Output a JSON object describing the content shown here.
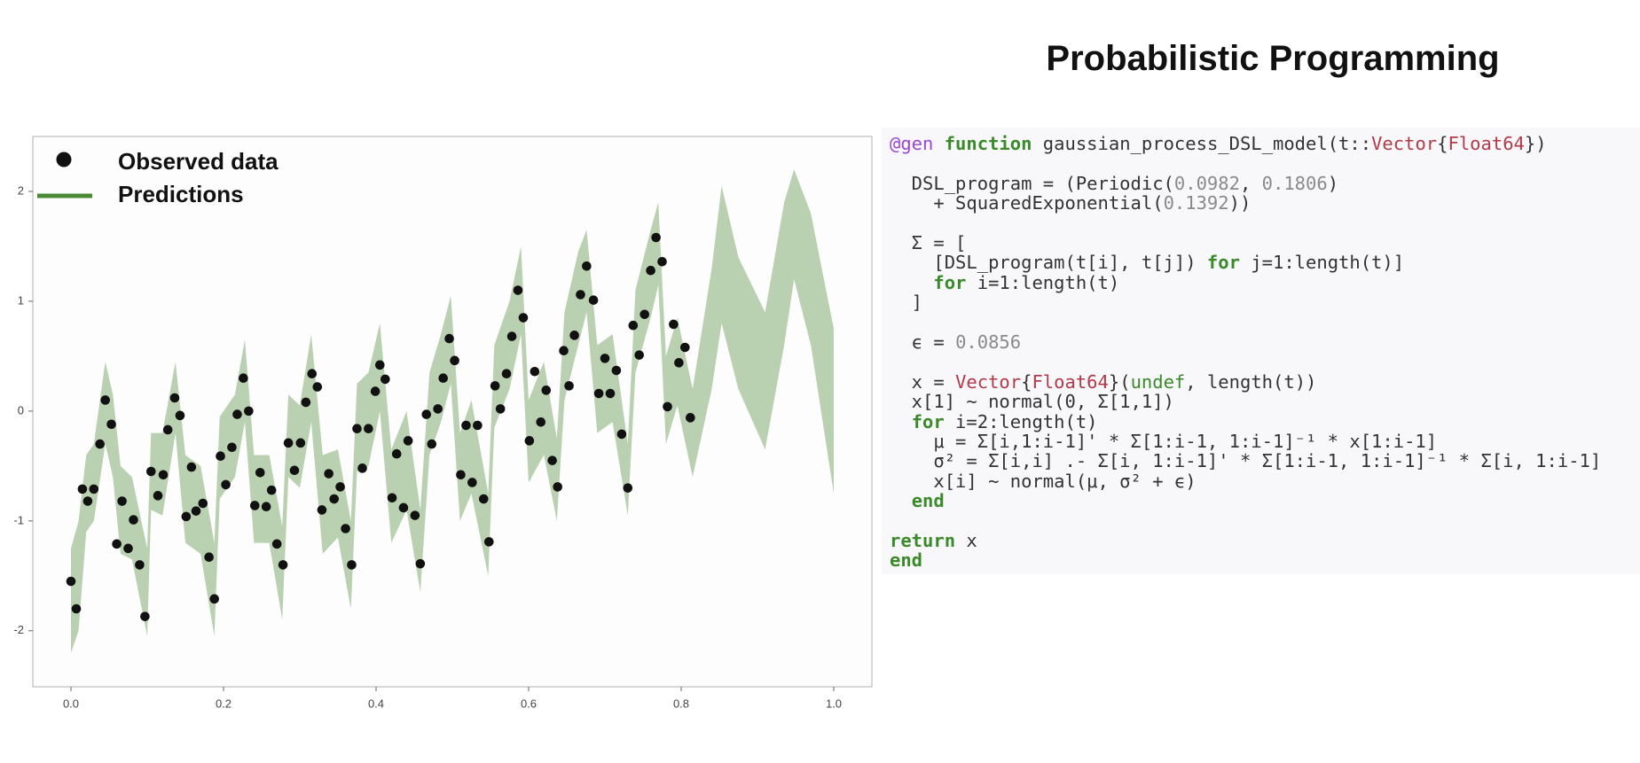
{
  "title": "Probabilistic Programming",
  "chart_data": {
    "type": "scatter",
    "xlim": [
      -0.05,
      1.05
    ],
    "ylim": [
      -2.51,
      2.5
    ],
    "xticks": [
      {
        "value": 0,
        "label": "0.0"
      },
      0.2,
      0.4,
      0.6,
      0.8,
      {
        "value": 1,
        "label": "1.0"
      }
    ],
    "yticks": [
      -2,
      -1,
      0,
      1,
      2
    ],
    "legend": "upper left",
    "series": [
      {
        "name": "Observed data",
        "type": "scatter",
        "color": "#111111",
        "x": [
          0.0,
          0.007,
          0.015,
          0.022,
          0.03,
          0.038,
          0.045,
          0.053,
          0.06,
          0.067,
          0.075,
          0.082,
          0.09,
          0.097,
          0.105,
          0.114,
          0.121,
          0.127,
          0.136,
          0.143,
          0.151,
          0.158,
          0.164,
          0.173,
          0.181,
          0.188,
          0.196,
          0.203,
          0.211,
          0.218,
          0.226,
          0.233,
          0.241,
          0.248,
          0.256,
          0.263,
          0.27,
          0.278,
          0.285,
          0.293,
          0.301,
          0.308,
          0.316,
          0.323,
          0.329,
          0.338,
          0.345,
          0.353,
          0.36,
          0.368,
          0.375,
          0.382,
          0.39,
          0.399,
          0.405,
          0.412,
          0.421,
          0.427,
          0.436,
          0.442,
          0.451,
          0.458,
          0.466,
          0.473,
          0.481,
          0.488,
          0.496,
          0.503,
          0.511,
          0.518,
          0.526,
          0.533,
          0.541,
          0.548,
          0.556,
          0.563,
          0.571,
          0.578,
          0.586,
          0.593,
          0.601,
          0.608,
          0.616,
          0.623,
          0.631,
          0.638,
          0.646,
          0.653,
          0.66,
          0.668,
          0.676,
          0.685,
          0.692,
          0.7,
          0.707,
          0.715,
          0.722,
          0.73,
          0.737,
          0.745,
          0.752,
          0.76,
          0.767,
          0.775,
          0.782,
          0.79,
          0.797,
          0.805,
          0.812
        ],
        "values": [
          -1.55,
          -1.8,
          -0.71,
          -0.82,
          -0.71,
          -0.3,
          0.1,
          -0.12,
          -1.21,
          -0.82,
          -1.25,
          -0.99,
          -1.4,
          -1.87,
          -0.55,
          -0.77,
          -0.58,
          -0.17,
          0.12,
          -0.04,
          -0.96,
          -0.51,
          -0.91,
          -0.84,
          -1.33,
          -1.71,
          -0.41,
          -0.67,
          -0.33,
          -0.03,
          0.3,
          0.0,
          -0.86,
          -0.56,
          -0.87,
          -0.72,
          -1.21,
          -1.4,
          -0.29,
          -0.54,
          -0.29,
          0.08,
          0.34,
          0.22,
          -0.9,
          -0.57,
          -0.8,
          -0.69,
          -1.07,
          -1.4,
          -0.16,
          -0.52,
          -0.16,
          0.18,
          0.42,
          0.29,
          -0.79,
          -0.39,
          -0.88,
          -0.27,
          -0.95,
          -1.39,
          -0.03,
          -0.3,
          0.02,
          0.3,
          0.66,
          0.46,
          -0.58,
          -0.13,
          -0.65,
          -0.13,
          -0.8,
          -1.19,
          0.23,
          0.02,
          0.34,
          0.68,
          1.1,
          0.85,
          -0.27,
          0.36,
          -0.1,
          0.19,
          -0.45,
          -0.69,
          0.55,
          0.23,
          0.69,
          1.06,
          1.32,
          1.01,
          0.16,
          0.48,
          0.16,
          0.37,
          -0.21,
          -0.7,
          0.78,
          0.51,
          0.88,
          1.28,
          1.58,
          1.36,
          0.04,
          0.79,
          0.44,
          0.58,
          -0.06
        ]
      },
      {
        "name": "Predictions",
        "type": "band",
        "color": "#4a8a34",
        "x": [
          0.0,
          0.01,
          0.02,
          0.03,
          0.045,
          0.055,
          0.065,
          0.08,
          0.1,
          0.105,
          0.12,
          0.137,
          0.15,
          0.17,
          0.188,
          0.195,
          0.215,
          0.228,
          0.24,
          0.26,
          0.277,
          0.285,
          0.3,
          0.315,
          0.33,
          0.35,
          0.367,
          0.375,
          0.39,
          0.405,
          0.42,
          0.44,
          0.458,
          0.47,
          0.485,
          0.498,
          0.51,
          0.525,
          0.547,
          0.555,
          0.575,
          0.59,
          0.6,
          0.62,
          0.637,
          0.647,
          0.665,
          0.676,
          0.69,
          0.71,
          0.73,
          0.74,
          0.76,
          0.77,
          0.78,
          0.795,
          0.815,
          0.84,
          0.853,
          0.875,
          0.91,
          0.935,
          0.948,
          0.97,
          1.0
        ],
        "lower": [
          -2.2,
          -2.0,
          -1.1,
          -1.0,
          -0.3,
          -0.6,
          -1.3,
          -1.35,
          -2.05,
          -0.9,
          -0.95,
          -0.2,
          -1.2,
          -1.3,
          -2.05,
          -0.8,
          -0.6,
          -0.1,
          -1.2,
          -1.2,
          -1.9,
          -0.6,
          -0.7,
          -0.1,
          -1.3,
          -1.15,
          -1.8,
          -0.55,
          -0.5,
          0.0,
          -1.2,
          -0.9,
          -1.65,
          -0.4,
          -0.1,
          0.25,
          -1.0,
          -0.75,
          -1.5,
          -0.15,
          0.2,
          0.7,
          -0.65,
          -0.4,
          -1.0,
          0.1,
          0.6,
          0.9,
          -0.2,
          -0.1,
          -0.95,
          0.35,
          0.85,
          1.15,
          -0.3,
          0.05,
          -0.6,
          0.2,
          0.8,
          0.2,
          -0.35,
          0.6,
          1.2,
          0.6,
          -0.75
        ],
        "upper": [
          -1.25,
          -1.0,
          -0.4,
          -0.3,
          0.45,
          0.15,
          -0.5,
          -0.6,
          -1.25,
          -0.2,
          -0.2,
          0.45,
          -0.4,
          -0.5,
          -1.2,
          -0.05,
          0.15,
          0.65,
          -0.4,
          -0.4,
          -1.05,
          0.15,
          0.05,
          0.7,
          -0.4,
          -0.35,
          -1.0,
          0.25,
          0.35,
          0.8,
          -0.35,
          0.0,
          -0.9,
          0.35,
          0.7,
          1.05,
          -0.2,
          0.1,
          -0.75,
          0.6,
          1.0,
          1.5,
          0.1,
          0.45,
          -0.25,
          0.9,
          1.45,
          1.65,
          0.6,
          0.7,
          -0.3,
          1.1,
          1.65,
          1.9,
          0.5,
          0.85,
          0.2,
          1.3,
          2.05,
          1.4,
          0.9,
          1.9,
          2.2,
          1.8,
          0.75
        ]
      }
    ]
  },
  "code": {
    "blocks": [
      [
        [
          {
            "text": "@gen",
            "color": "#9b45d8"
          },
          {
            "text": " "
          },
          {
            "text": "function",
            "color": "#3a8a2a",
            "bold": true
          },
          {
            "text": " gaussian_process_DSL_model(t::"
          },
          {
            "text": "Vector",
            "color": "#b23a48"
          },
          {
            "text": "{"
          },
          {
            "text": "Float64",
            "color": "#b23a48"
          },
          {
            "text": "})"
          }
        ]
      ],
      [
        [
          {
            "text": "  DSL_program = (Periodic("
          },
          {
            "text": "0.0982",
            "color": "#8a8a8a"
          },
          {
            "text": ", "
          },
          {
            "text": "0.1806",
            "color": "#8a8a8a"
          },
          {
            "text": ")"
          }
        ],
        [
          {
            "text": "    + SquaredExponential("
          },
          {
            "text": "0.1392",
            "color": "#8a8a8a"
          },
          {
            "text": "))"
          }
        ]
      ],
      [
        [
          {
            "text": "  Σ = ["
          }
        ],
        [
          {
            "text": "    [DSL_program(t[i], t[j]) "
          },
          {
            "text": "for",
            "color": "#3a8a2a",
            "bold": true
          },
          {
            "text": " j=1:length(t)]"
          }
        ],
        [
          {
            "text": "    "
          },
          {
            "text": "for",
            "color": "#3a8a2a",
            "bold": true
          },
          {
            "text": " i=1:length(t)"
          }
        ],
        [
          {
            "text": "  ]"
          }
        ]
      ],
      [
        [
          {
            "text": "  ϵ = "
          },
          {
            "text": "0.0856",
            "color": "#8a8a8a"
          }
        ]
      ],
      [
        [
          {
            "text": "  x = "
          },
          {
            "text": "Vector",
            "color": "#b23a48"
          },
          {
            "text": "{"
          },
          {
            "text": "Float64",
            "color": "#b23a48"
          },
          {
            "text": "}("
          },
          {
            "text": "undef",
            "color": "#3a8a2a"
          },
          {
            "text": ", length(t))"
          }
        ],
        [
          {
            "text": "  x[1] ~ normal(0, Σ[1,1])"
          }
        ],
        [
          {
            "text": "  "
          },
          {
            "text": "for",
            "color": "#3a8a2a",
            "bold": true
          },
          {
            "text": " i=2:length(t)"
          }
        ],
        [
          {
            "text": "    μ = Σ[i,1:i-1]' * Σ[1:i-1, 1:i-1]⁻¹ * x[1:i-1]"
          }
        ],
        [
          {
            "text": "    σ² = Σ[i,i] .- Σ[i, 1:i-1]' * Σ[1:i-1, 1:i-1]⁻¹ * Σ[i, 1:i-1]"
          }
        ],
        [
          {
            "text": "    x[i] ~ normal(μ, σ² + ϵ)"
          }
        ],
        [
          {
            "text": "  "
          },
          {
            "text": "end",
            "color": "#3a8a2a",
            "bold": true
          }
        ]
      ],
      [
        [
          {
            "text": "return",
            "color": "#3a8a2a",
            "bold": true
          },
          {
            "text": " x"
          }
        ],
        [
          {
            "text": "end",
            "color": "#3a8a2a",
            "bold": true
          }
        ]
      ]
    ]
  }
}
